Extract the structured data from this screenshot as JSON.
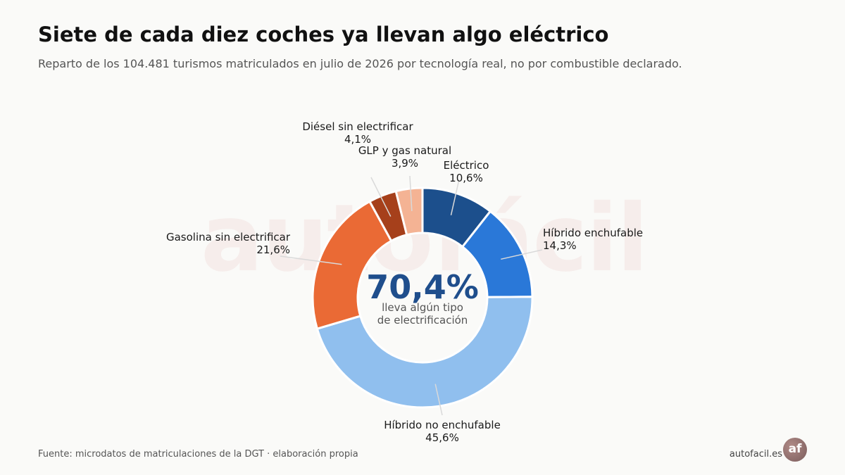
{
  "header": {
    "title": "Siete de cada diez coches ya llevan algo eléctrico",
    "subtitle": "Reparto de los 104.481 turismos matriculados en julio de 2026 por tecnología real, no por combustible declarado."
  },
  "watermark": "autofácil",
  "chart_data": {
    "type": "pie",
    "variant": "donut",
    "start": "top, clockwise",
    "slices": [
      {
        "label": "Eléctrico",
        "value": 10.6,
        "value_text": "10,6%",
        "color": "#1c4f8c"
      },
      {
        "label": "Híbrido enchufable",
        "value": 14.3,
        "value_text": "14,3%",
        "color": "#2a78d8"
      },
      {
        "label": "Híbrido no enchufable",
        "value": 45.6,
        "value_text": "45,6%",
        "color": "#90bfee"
      },
      {
        "label": "Gasolina sin electrificar",
        "value": 21.6,
        "value_text": "21,6%",
        "color": "#ea6a35"
      },
      {
        "label": "Diésel sin electrificar",
        "value": 4.1,
        "value_text": "4,1%",
        "color": "#a6401b"
      },
      {
        "label": "GLP y gas natural",
        "value": 3.9,
        "value_text": "3,9%",
        "color": "#f4b394"
      }
    ],
    "center": {
      "value": "70,4%",
      "line1": "lleva algún tipo",
      "line2": "de electrificación"
    }
  },
  "footer": {
    "source": "Fuente: microdatos de matriculaciones de la DGT · elaboración propia",
    "brand": "autofacil.es",
    "logo": "af"
  }
}
